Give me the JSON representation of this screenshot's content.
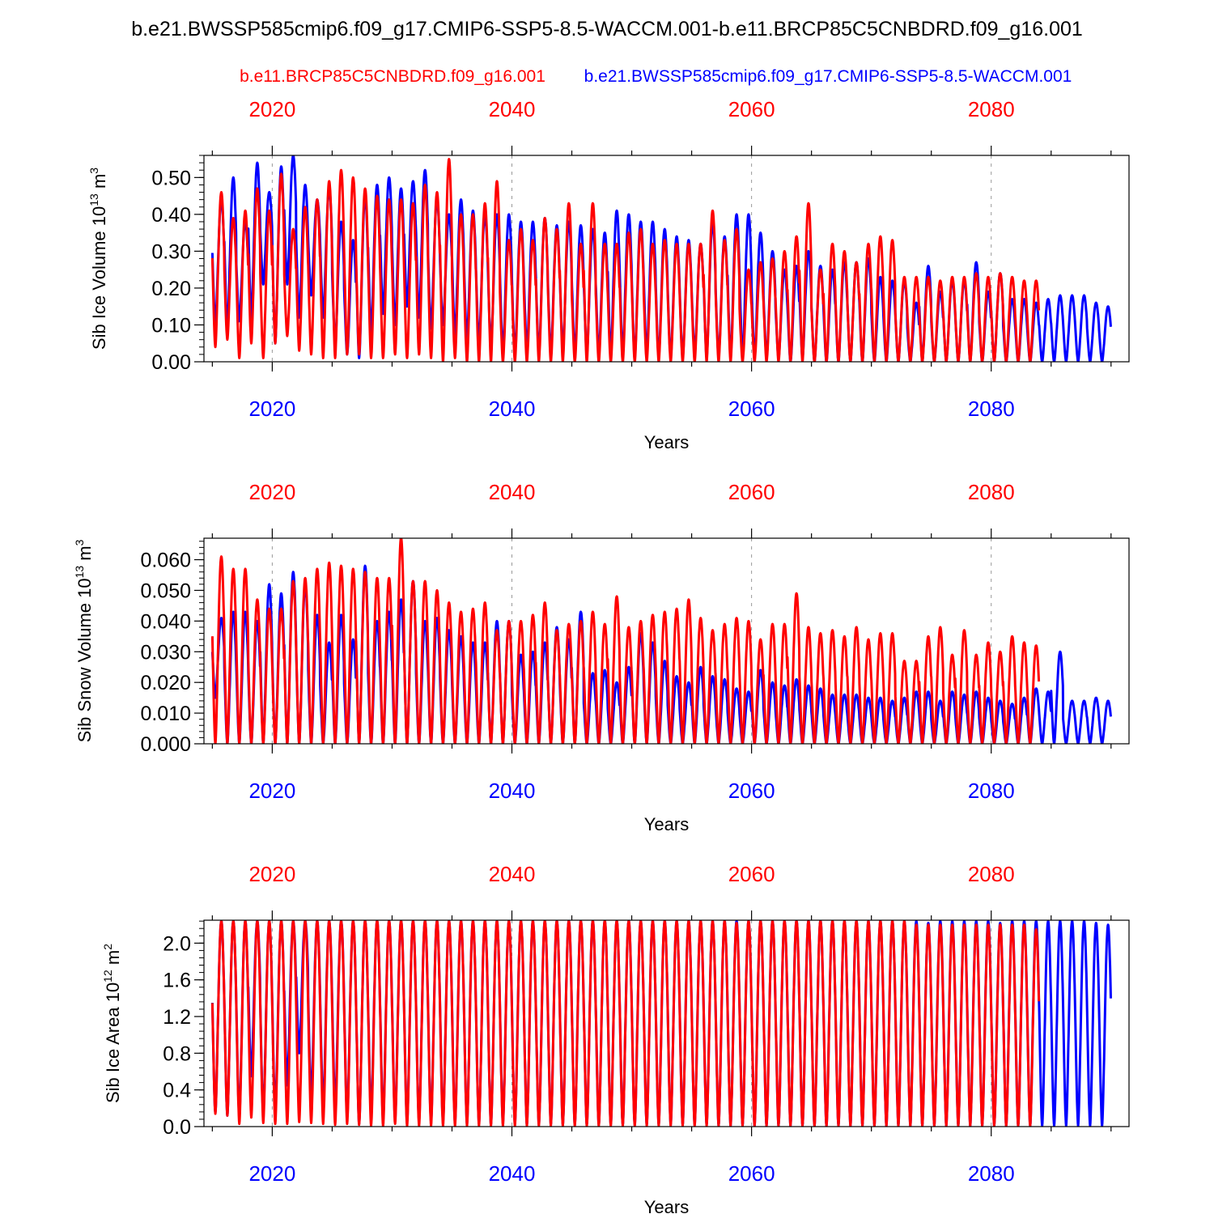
{
  "colors": {
    "blue": "#0000ff",
    "red": "#ff0000",
    "black": "#000000",
    "grid": "#999999"
  },
  "title": "b.e21.BWSSP585cmip6.f09_g17.CMIP6-SSP5-8.5-WACCM.001-b.e11.BRCP85C5CNBDRD.f09_g16.001",
  "legend": {
    "red_case": "b.e11.BRCP85C5CNBDRD.f09_g16.001",
    "blue_case": "b.e21.BWSSP585cmip6.f09_g17.CMIP6-SSP5-8.5-WACCM.001"
  },
  "chart_data": [
    {
      "type": "line",
      "title": "",
      "xlabel": "Years",
      "ylabel": "Sib Ice Volume 10",
      "ylabel_exp": "13",
      "ylabel_unit": " m",
      "ylabel_unit_exp": "3",
      "xlim": [
        2014.3,
        2091.5
      ],
      "ylim": [
        0.0,
        0.56
      ],
      "xticks": [
        "2020",
        "2040",
        "2060",
        "2080"
      ],
      "yticks": [
        "0.00",
        "0.10",
        "0.20",
        "0.30",
        "0.40",
        "0.50"
      ],
      "ytick_values": [
        0.0,
        0.1,
        0.2,
        0.3,
        0.4,
        0.5
      ],
      "start_year": 2015,
      "series": [
        {
          "name": "b.e21.BWSSP585cmip6.f09_g17.CMIP6-SSP5-8.5-WACCM.001",
          "color": "#0000ff",
          "max": [
            0.44,
            0.5,
            0.38,
            0.54,
            0.46,
            0.53,
            0.56,
            0.48,
            0.44,
            0.47,
            0.38,
            0.33,
            0.45,
            0.48,
            0.5,
            0.47,
            0.49,
            0.52,
            0.44,
            0.4,
            0.44,
            0.41,
            0.4,
            0.4,
            0.4,
            0.38,
            0.38,
            0.39,
            0.37,
            0.38,
            0.37,
            0.36,
            0.35,
            0.41,
            0.4,
            0.38,
            0.38,
            0.36,
            0.34,
            0.33,
            0.32,
            0.38,
            0.34,
            0.4,
            0.4,
            0.35,
            0.3,
            0.25,
            0.26,
            0.3,
            0.26,
            0.25,
            0.27,
            0.27,
            0.28,
            0.23,
            0.22,
            0.22,
            0.16,
            0.26,
            0.19,
            0.22,
            0.22,
            0.27,
            0.19,
            0.24,
            0.17,
            0.17,
            0.16,
            0.17,
            0.18,
            0.18,
            0.18,
            0.16,
            0.15
          ],
          "min": [
            0.1,
            0.09,
            0.11,
            0.12,
            0.21,
            0.05,
            0.21,
            0.12,
            0.18,
            0.12,
            0.05,
            0.02,
            0.01,
            0.08,
            0.13,
            0.1,
            0.15,
            0.12,
            0.09,
            0.1,
            0.07,
            0.06,
            0.05,
            0.04,
            0.02,
            0.02,
            0.03,
            0.02,
            0.02,
            0.03,
            0.02,
            0.02,
            0.02,
            0.02,
            0.02,
            0.01,
            0.02,
            0.01,
            0.01,
            0.01,
            0.02,
            0.01,
            0.01,
            0.01,
            0.01,
            0.01,
            0.01,
            0.01,
            0.0,
            0.01,
            0.0,
            0.0,
            0.0,
            0.0,
            0.0,
            0.0,
            0.0,
            0.0,
            0.0,
            0.0,
            0.0,
            0.0,
            0.0,
            0.0,
            0.0,
            0.0,
            0.0,
            0.0,
            0.0,
            0.0,
            0.0,
            0.0,
            0.0,
            0.0,
            0.0
          ]
        },
        {
          "name": "b.e11.BRCP85C5CNBDRD.f09_g16.001",
          "color": "#ff0000",
          "max": [
            0.46,
            0.39,
            0.41,
            0.47,
            0.41,
            0.51,
            0.36,
            0.42,
            0.44,
            0.49,
            0.52,
            0.5,
            0.47,
            0.45,
            0.44,
            0.44,
            0.43,
            0.48,
            0.46,
            0.55,
            0.4,
            0.4,
            0.43,
            0.49,
            0.33,
            0.36,
            0.33,
            0.39,
            0.36,
            0.43,
            0.32,
            0.43,
            0.32,
            0.32,
            0.35,
            0.36,
            0.32,
            0.33,
            0.32,
            0.32,
            0.32,
            0.41,
            0.33,
            0.36,
            0.25,
            0.27,
            0.28,
            0.3,
            0.34,
            0.43,
            0.25,
            0.32,
            0.3,
            0.27,
            0.32,
            0.34,
            0.33,
            0.23,
            0.23,
            0.23,
            0.22,
            0.23,
            0.23,
            0.24,
            0.23,
            0.24,
            0.23,
            0.22,
            0.22
          ],
          "min": [
            0.04,
            0.06,
            0.01,
            0.05,
            0.01,
            0.05,
            0.07,
            0.03,
            0.02,
            0.01,
            0.01,
            0.02,
            0.02,
            0.01,
            0.01,
            0.02,
            0.01,
            0.02,
            0.01,
            0.0,
            0.01,
            0.0,
            0.0,
            0.0,
            0.0,
            0.0,
            0.0,
            0.0,
            0.0,
            0.0,
            0.0,
            0.0,
            0.0,
            0.0,
            0.0,
            0.0,
            0.0,
            0.0,
            0.0,
            0.0,
            0.0,
            0.0,
            0.0,
            0.0,
            0.0,
            0.0,
            0.0,
            0.0,
            0.0,
            0.0,
            0.0,
            0.0,
            0.0,
            0.0,
            0.0,
            0.0,
            0.0,
            0.0,
            0.0,
            0.0,
            0.0,
            0.0,
            0.0,
            0.0,
            0.0,
            0.0,
            0.0,
            0.0,
            0.0
          ]
        }
      ]
    },
    {
      "type": "line",
      "title": "",
      "xlabel": "Years",
      "ylabel": "Sib Snow Volume 10",
      "ylabel_exp": "13",
      "ylabel_unit": " m",
      "ylabel_unit_exp": "3",
      "xlim": [
        2014.3,
        2091.5
      ],
      "ylim": [
        0.0,
        0.067
      ],
      "xticks": [
        "2020",
        "2040",
        "2060",
        "2080"
      ],
      "yticks": [
        "0.000",
        "0.010",
        "0.020",
        "0.030",
        "0.040",
        "0.050",
        "0.060"
      ],
      "ytick_values": [
        0.0,
        0.01,
        0.02,
        0.03,
        0.04,
        0.05,
        0.06
      ],
      "start_year": 2015,
      "series": [
        {
          "name": "b.e21.BWSSP585cmip6.f09_g17.CMIP6-SSP5-8.5-WACCM.001",
          "color": "#0000ff",
          "max": [
            0.041,
            0.043,
            0.043,
            0.04,
            0.052,
            0.049,
            0.056,
            0.052,
            0.042,
            0.033,
            0.042,
            0.034,
            0.058,
            0.04,
            0.043,
            0.047,
            0.053,
            0.04,
            0.041,
            0.037,
            0.035,
            0.033,
            0.033,
            0.04,
            0.04,
            0.029,
            0.03,
            0.033,
            0.038,
            0.034,
            0.043,
            0.023,
            0.024,
            0.02,
            0.025,
            0.036,
            0.033,
            0.027,
            0.022,
            0.02,
            0.025,
            0.022,
            0.021,
            0.018,
            0.017,
            0.024,
            0.02,
            0.019,
            0.021,
            0.019,
            0.018,
            0.016,
            0.016,
            0.016,
            0.015,
            0.015,
            0.014,
            0.015,
            0.017,
            0.017,
            0.014,
            0.017,
            0.016,
            0.017,
            0.015,
            0.014,
            0.013,
            0.015,
            0.018,
            0.017,
            0.03,
            0.014,
            0.014,
            0.015,
            0.014
          ],
          "min": [
            0.015,
            0.0,
            0.0,
            0.0,
            0.0,
            0.0,
            0.0,
            0.0,
            0.0,
            0.0,
            0.0,
            0.0,
            0.0,
            0.0,
            0.0,
            0.0,
            0.0,
            0.0,
            0.0,
            0.0,
            0.0,
            0.0,
            0.0,
            0.0,
            0.0,
            0.0,
            0.0,
            0.0,
            0.0,
            0.0,
            0.0,
            0.0,
            0.0,
            0.0,
            0.0,
            0.0,
            0.0,
            0.0,
            0.0,
            0.0,
            0.0,
            0.0,
            0.0,
            0.0,
            0.0,
            0.0,
            0.0,
            0.0,
            0.0,
            0.0,
            0.0,
            0.0,
            0.0,
            0.0,
            0.0,
            0.0,
            0.0,
            0.0,
            0.0,
            0.0,
            0.0,
            0.0,
            0.0,
            0.0,
            0.0,
            0.0,
            0.0,
            0.0,
            0.0,
            0.0,
            0.0,
            0.0,
            0.0,
            0.0,
            0.0
          ]
        },
        {
          "name": "b.e11.BRCP85C5CNBDRD.f09_g16.001",
          "color": "#ff0000",
          "max": [
            0.061,
            0.057,
            0.057,
            0.047,
            0.044,
            0.044,
            0.053,
            0.054,
            0.057,
            0.059,
            0.058,
            0.057,
            0.056,
            0.054,
            0.054,
            0.067,
            0.053,
            0.053,
            0.05,
            0.046,
            0.043,
            0.044,
            0.046,
            0.037,
            0.04,
            0.04,
            0.042,
            0.046,
            0.037,
            0.039,
            0.04,
            0.043,
            0.039,
            0.048,
            0.038,
            0.04,
            0.042,
            0.043,
            0.044,
            0.047,
            0.041,
            0.037,
            0.039,
            0.041,
            0.04,
            0.034,
            0.039,
            0.039,
            0.049,
            0.038,
            0.036,
            0.037,
            0.035,
            0.038,
            0.034,
            0.036,
            0.036,
            0.027,
            0.027,
            0.035,
            0.038,
            0.029,
            0.037,
            0.029,
            0.033,
            0.03,
            0.035,
            0.033,
            0.032
          ],
          "min": [
            0.0,
            0.0,
            0.0,
            0.0,
            0.0,
            0.0,
            0.0,
            0.0,
            0.0,
            0.0,
            0.0,
            0.0,
            0.0,
            0.0,
            0.0,
            0.0,
            0.0,
            0.0,
            0.0,
            0.0,
            0.0,
            0.0,
            0.0,
            0.0,
            0.0,
            0.0,
            0.0,
            0.0,
            0.0,
            0.0,
            0.0,
            0.0,
            0.0,
            0.0,
            0.0,
            0.0,
            0.0,
            0.0,
            0.0,
            0.0,
            0.0,
            0.0,
            0.0,
            0.0,
            0.0,
            0.0,
            0.0,
            0.0,
            0.0,
            0.0,
            0.0,
            0.0,
            0.0,
            0.0,
            0.0,
            0.0,
            0.0,
            0.0,
            0.0,
            0.0,
            0.0,
            0.0,
            0.0,
            0.0,
            0.0,
            0.0,
            0.0,
            0.0,
            0.0
          ]
        }
      ]
    },
    {
      "type": "line",
      "title": "",
      "xlabel": "Years",
      "ylabel": "Sib Ice Area 10",
      "ylabel_exp": "12",
      "ylabel_unit": " m",
      "ylabel_unit_exp": "2",
      "xlim": [
        2014.3,
        2091.5
      ],
      "ylim": [
        0.0,
        2.25
      ],
      "xticks": [
        "2020",
        "2040",
        "2060",
        "2080"
      ],
      "yticks": [
        "0.0",
        "0.4",
        "0.8",
        "1.2",
        "1.6",
        "2.0"
      ],
      "ytick_values": [
        0.0,
        0.4,
        0.8,
        1.2,
        1.6,
        2.0
      ],
      "start_year": 2015,
      "series": [
        {
          "name": "b.e21.BWSSP585cmip6.f09_g17.CMIP6-SSP5-8.5-WACCM.001",
          "color": "#0000ff",
          "max": [
            2.24,
            2.24,
            2.24,
            2.24,
            2.24,
            2.24,
            2.24,
            2.24,
            2.24,
            2.24,
            2.24,
            2.24,
            2.24,
            2.24,
            2.24,
            2.24,
            2.24,
            2.24,
            2.24,
            2.24,
            2.24,
            2.24,
            2.24,
            2.24,
            2.24,
            2.24,
            2.24,
            2.24,
            2.24,
            2.24,
            2.24,
            2.24,
            2.24,
            2.24,
            2.24,
            2.24,
            2.24,
            2.24,
            2.24,
            2.24,
            2.24,
            2.24,
            2.24,
            2.24,
            2.24,
            2.24,
            2.24,
            2.24,
            2.24,
            2.24,
            2.24,
            2.24,
            2.24,
            2.24,
            2.24,
            2.24,
            2.24,
            2.24,
            2.24,
            2.22,
            2.24,
            2.24,
            2.24,
            2.24,
            2.24,
            2.22,
            2.24,
            2.24,
            2.24,
            2.24,
            2.24,
            2.24,
            2.24,
            2.22,
            2.2
          ],
          "min": [
            0.15,
            0.12,
            0.1,
            0.55,
            0.12,
            0.15,
            0.45,
            0.8,
            0.3,
            0.2,
            0.2,
            0.1,
            0.03,
            0.12,
            0.08,
            0.08,
            0.05,
            0.06,
            0.05,
            0.05,
            0.04,
            0.03,
            0.03,
            0.02,
            0.04,
            0.03,
            0.02,
            0.02,
            0.02,
            0.02,
            0.02,
            0.02,
            0.02,
            0.02,
            0.02,
            0.02,
            0.02,
            0.02,
            0.02,
            0.02,
            0.02,
            0.02,
            0.01,
            0.01,
            0.01,
            0.01,
            0.01,
            0.01,
            0.01,
            0.01,
            0.01,
            0.01,
            0.01,
            0.01,
            0.01,
            0.01,
            0.01,
            0.01,
            0.01,
            0.01,
            0.01,
            0.01,
            0.01,
            0.01,
            0.01,
            0.01,
            0.01,
            0.01,
            0.01,
            0.01,
            0.01,
            0.01,
            0.01,
            0.01,
            0.01
          ]
        },
        {
          "name": "b.e11.BRCP85C5CNBDRD.f09_g16.001",
          "color": "#ff0000",
          "max": [
            2.24,
            2.24,
            2.24,
            2.24,
            2.24,
            2.24,
            2.24,
            2.24,
            2.24,
            2.24,
            2.24,
            2.24,
            2.24,
            2.24,
            2.24,
            2.24,
            2.24,
            2.24,
            2.24,
            2.24,
            2.24,
            2.24,
            2.24,
            2.24,
            2.24,
            2.24,
            2.24,
            2.24,
            2.24,
            2.24,
            2.24,
            2.24,
            2.24,
            2.24,
            2.24,
            2.24,
            2.24,
            2.24,
            2.24,
            2.24,
            2.24,
            2.24,
            2.24,
            2.22,
            2.24,
            2.24,
            2.24,
            2.24,
            2.24,
            2.24,
            2.24,
            2.24,
            2.24,
            2.24,
            2.24,
            2.24,
            2.24,
            2.24,
            2.2,
            2.2,
            2.2,
            2.2,
            2.2,
            2.2,
            2.2,
            2.2,
            2.2,
            2.2,
            2.15
          ],
          "min": [
            0.14,
            0.12,
            0.03,
            0.1,
            0.04,
            0.03,
            0.03,
            0.05,
            0.04,
            0.03,
            0.02,
            0.03,
            0.02,
            0.01,
            0.01,
            0.03,
            0.01,
            0.01,
            0.01,
            0.01,
            0.01,
            0.01,
            0.01,
            0.01,
            0.01,
            0.01,
            0.01,
            0.01,
            0.01,
            0.01,
            0.01,
            0.01,
            0.01,
            0.01,
            0.01,
            0.01,
            0.01,
            0.01,
            0.01,
            0.01,
            0.01,
            0.01,
            0.01,
            0.01,
            0.01,
            0.01,
            0.01,
            0.01,
            0.01,
            0.01,
            0.01,
            0.01,
            0.01,
            0.01,
            0.01,
            0.01,
            0.01,
            0.01,
            0.01,
            0.01,
            0.01,
            0.01,
            0.01,
            0.01,
            0.01,
            0.01,
            0.01,
            0.01,
            0.01
          ]
        }
      ]
    }
  ]
}
